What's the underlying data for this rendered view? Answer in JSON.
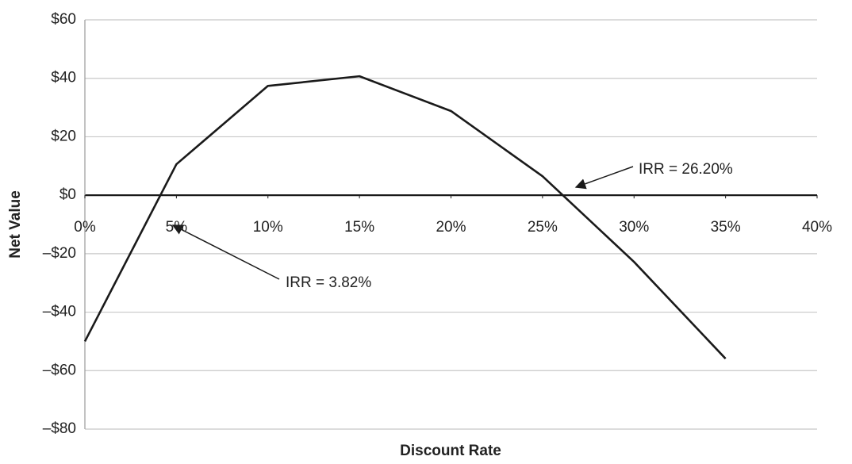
{
  "chart_data": {
    "type": "line",
    "x_label": "Discount Rate",
    "y_label": "Net Value",
    "x": [
      0,
      5,
      10,
      15,
      20,
      25,
      30,
      35
    ],
    "values": [
      -50,
      10.6,
      37.4,
      40.7,
      28.8,
      6.5,
      -22.8,
      -55.9
    ],
    "color": "#1a1a1a",
    "xlim": [
      0,
      40
    ],
    "xticks": [
      {
        "value": 0,
        "label": "0%"
      },
      {
        "value": 5,
        "label": "5%"
      },
      {
        "value": 10,
        "label": "10%"
      },
      {
        "value": 15,
        "label": "15%"
      },
      {
        "value": 20,
        "label": "20%"
      },
      {
        "value": 25,
        "label": "25%"
      },
      {
        "value": 30,
        "label": "30%"
      },
      {
        "value": 35,
        "label": "35%"
      },
      {
        "value": 40,
        "label": "40%"
      }
    ],
    "ylim": [
      -80,
      60
    ],
    "yticks": [
      {
        "value": 60,
        "label": "$60"
      },
      {
        "value": 40,
        "label": "$40"
      },
      {
        "value": 20,
        "label": "$20"
      },
      {
        "value": 0,
        "label": "$0"
      },
      {
        "value": -20,
        "label": "–$20"
      },
      {
        "value": -40,
        "label": "–$40"
      },
      {
        "value": -60,
        "label": "–$60"
      },
      {
        "value": -80,
        "label": "–$80"
      }
    ],
    "grid": true,
    "annotations": [
      "IRR = 26.20%",
      "IRR = 3.82%"
    ]
  }
}
